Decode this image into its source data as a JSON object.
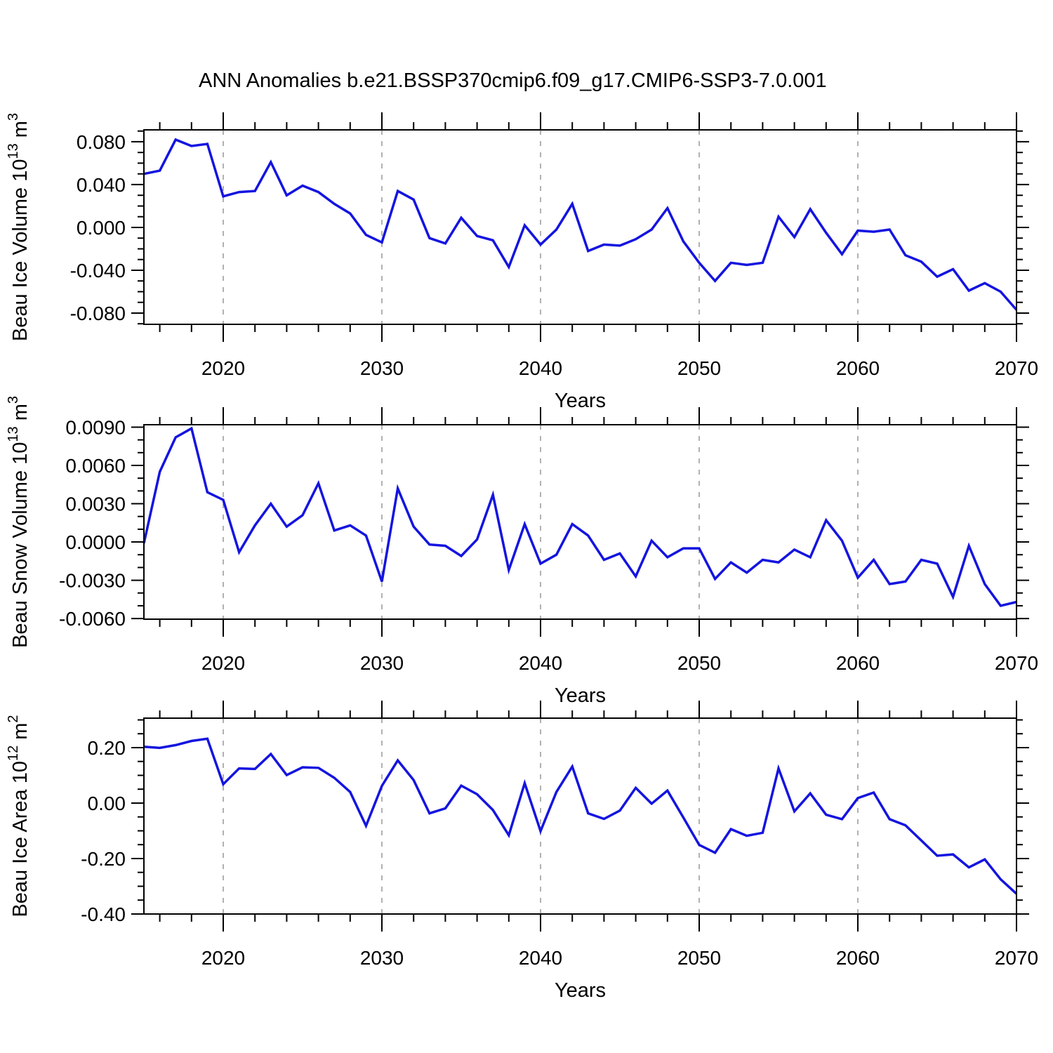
{
  "title": "ANN Anomalies b.e21.BSSP370cmip6.f09_g17.CMIP6-SSP3-7.0.001",
  "chart_data": [
    {
      "id": "beau-ice-volume",
      "type": "line",
      "line_color": "#1414e0",
      "xlabel": "Years",
      "ylabel": "Beau Ice Volume 10^13 m^3",
      "ylabel_parts": [
        {
          "text": "Beau Ice Volume 10",
          "sup": false
        },
        {
          "text": "13",
          "sup": true
        },
        {
          "text": " m",
          "sup": false
        },
        {
          "text": "3",
          "sup": true
        }
      ],
      "x_start": 2015,
      "x_step": 1,
      "xlim": [
        2015,
        2070
      ],
      "xticks": [
        2020,
        2030,
        2040,
        2050,
        2060,
        2070
      ],
      "x_minor_step": 2,
      "grid_x": [
        2020,
        2030,
        2040,
        2050,
        2060
      ],
      "ylim": [
        -0.0905,
        0.0911
      ],
      "yticks": [
        0.08,
        0.04,
        0.0,
        -0.04,
        -0.08
      ],
      "ytick_labels": [
        "0.080",
        "0.040",
        "0.000",
        "-0.040",
        "-0.080"
      ],
      "y_minor_step": 0.01,
      "values": [
        0.05,
        0.053,
        0.082,
        0.076,
        0.078,
        0.029,
        0.033,
        0.034,
        0.061,
        0.03,
        0.039,
        0.033,
        0.022,
        0.013,
        -0.007,
        -0.014,
        0.034,
        0.026,
        -0.01,
        -0.015,
        0.009,
        -0.008,
        -0.012,
        -0.037,
        0.002,
        -0.016,
        -0.002,
        0.022,
        -0.022,
        -0.016,
        -0.017,
        -0.011,
        -0.002,
        0.018,
        -0.013,
        -0.033,
        -0.05,
        -0.033,
        -0.035,
        -0.033,
        0.01,
        -0.009,
        0.017,
        -0.005,
        -0.025,
        -0.003,
        -0.004,
        -0.002,
        -0.026,
        -0.032,
        -0.046,
        -0.039,
        -0.059,
        -0.052,
        -0.06,
        -0.077
      ]
    },
    {
      "id": "beau-snow-volume",
      "type": "line",
      "line_color": "#1414e0",
      "xlabel": "Years",
      "ylabel": "Beau Snow Volume 10^13 m^3",
      "ylabel_parts": [
        {
          "text": "Beau Snow Volume 10",
          "sup": false
        },
        {
          "text": "13",
          "sup": true
        },
        {
          "text": " m",
          "sup": false
        },
        {
          "text": "3",
          "sup": true
        }
      ],
      "x_start": 2015,
      "x_step": 1,
      "xlim": [
        2015,
        2070
      ],
      "xticks": [
        2020,
        2030,
        2040,
        2050,
        2060,
        2070
      ],
      "x_minor_step": 2,
      "grid_x": [
        2020,
        2030,
        2040,
        2050,
        2060
      ],
      "ylim": [
        -0.00605,
        0.00919
      ],
      "yticks": [
        0.009,
        0.006,
        0.003,
        0.0,
        -0.003,
        -0.006
      ],
      "ytick_labels": [
        "0.0090",
        "0.0060",
        "0.0030",
        "0.0000",
        "-0.0030",
        "-0.0060"
      ],
      "y_minor_step": 0.001,
      "values": [
        -0.0001,
        0.0055,
        0.0082,
        0.0089,
        0.0039,
        0.0033,
        -0.0008,
        0.0013,
        0.003,
        0.0012,
        0.0021,
        0.0046,
        0.0009,
        0.0013,
        0.0005,
        -0.0031,
        0.0042,
        0.0012,
        -0.0002,
        -0.0003,
        -0.0011,
        0.0002,
        0.0037,
        -0.0022,
        0.0014,
        -0.0017,
        -0.001,
        0.0014,
        0.0005,
        -0.0014,
        -0.0009,
        -0.0027,
        0.0001,
        -0.0012,
        -0.0005,
        -0.0005,
        -0.0029,
        -0.0016,
        -0.0024,
        -0.0014,
        -0.0016,
        -0.0006,
        -0.0012,
        0.0017,
        0.0001,
        -0.0028,
        -0.0014,
        -0.0033,
        -0.0031,
        -0.0014,
        -0.0017,
        -0.0043,
        -0.0003,
        -0.0033,
        -0.005,
        -0.0047
      ]
    },
    {
      "id": "beau-ice-area",
      "type": "line",
      "line_color": "#1414e0",
      "xlabel": "Years",
      "ylabel": "Beau Ice Area 10^12 m^2",
      "ylabel_parts": [
        {
          "text": "Beau Ice Area 10",
          "sup": false
        },
        {
          "text": "12",
          "sup": true
        },
        {
          "text": " m",
          "sup": false
        },
        {
          "text": "2",
          "sup": true
        }
      ],
      "x_start": 2015,
      "x_step": 1,
      "xlim": [
        2015,
        2070
      ],
      "xticks": [
        2020,
        2030,
        2040,
        2050,
        2060,
        2070
      ],
      "x_minor_step": 2,
      "grid_x": [
        2020,
        2030,
        2040,
        2050,
        2060
      ],
      "ylim": [
        -0.4,
        0.3063
      ],
      "yticks": [
        0.2,
        0.0,
        -0.2,
        -0.4
      ],
      "ytick_labels": [
        "0.20",
        "0.00",
        "-0.20",
        "-0.40"
      ],
      "y_minor_step": 0.05,
      "values": [
        0.203,
        0.199,
        0.209,
        0.224,
        0.232,
        0.068,
        0.125,
        0.123,
        0.177,
        0.101,
        0.129,
        0.127,
        0.091,
        0.04,
        -0.082,
        0.062,
        0.154,
        0.083,
        -0.037,
        -0.019,
        0.063,
        0.032,
        -0.025,
        -0.116,
        0.072,
        -0.101,
        0.04,
        0.132,
        -0.037,
        -0.057,
        -0.027,
        0.055,
        -0.002,
        0.045,
        -0.052,
        -0.151,
        -0.179,
        -0.094,
        -0.118,
        -0.107,
        0.125,
        -0.03,
        0.035,
        -0.042,
        -0.058,
        0.018,
        0.038,
        -0.058,
        -0.08,
        -0.135,
        -0.19,
        -0.185,
        -0.232,
        -0.203,
        -0.275,
        -0.327
      ]
    }
  ]
}
